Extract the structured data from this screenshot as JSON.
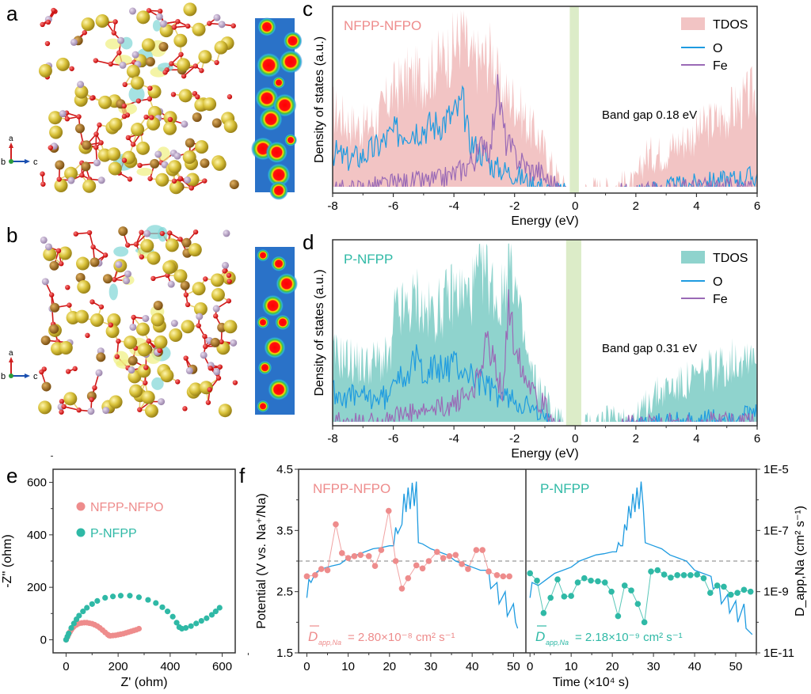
{
  "panels": {
    "a": {
      "letter": "a",
      "axes": {
        "up": "a",
        "origin": "b",
        "right": "c"
      }
    },
    "b": {
      "letter": "b",
      "axes": {
        "up": "a",
        "origin": "b",
        "right": "c"
      }
    }
  },
  "colors": {
    "nfpo": "#ee8c8c",
    "nfpo_fill": "#f2c4c4",
    "pnfpp": "#2fb9a6",
    "pnfpp_fill": "#8fd3cd",
    "o_line": "#1e9be0",
    "fe_line": "#9a6ab6",
    "gap_band": "#dcecc8",
    "ref_dash": "#999999"
  },
  "chart_data": [
    {
      "id": "c",
      "panel_letter": "c",
      "type": "area",
      "sample_label": "NFPP-NFPO",
      "xlabel": "Energy (eV)",
      "ylabel": "Density of states (a.u.)",
      "xlim": [
        -8,
        6
      ],
      "ylim": [
        0,
        1
      ],
      "xticks": [
        -8,
        -6,
        -4,
        -2,
        0,
        2,
        4,
        6
      ],
      "gap_band": [
        -0.18,
        0.12
      ],
      "annotation": "Band gap 0.18 eV",
      "legend": {
        "placement": "top-right",
        "entries": [
          "TDOS",
          "O",
          "Fe"
        ]
      },
      "series": [
        {
          "name": "TDOS",
          "x": [
            -8,
            -7.5,
            -7,
            -6.5,
            -6,
            -5.5,
            -5,
            -4.5,
            -4,
            -3.7,
            -3.5,
            -3,
            -2.7,
            -2.5,
            -2,
            -1.5,
            -1.2,
            -1,
            -0.5,
            -0.2,
            0.2,
            0.6,
            1,
            1.5,
            2,
            2.3,
            3,
            3.5,
            4,
            4.5,
            5,
            5.5,
            6
          ],
          "y": [
            0.45,
            0.38,
            0.35,
            0.4,
            0.55,
            0.62,
            0.62,
            0.7,
            0.78,
            0.88,
            0.7,
            0.72,
            0.75,
            0.55,
            0.5,
            0.35,
            0.3,
            0.22,
            0.06,
            0.0,
            0.0,
            0.03,
            0.02,
            0.05,
            0.05,
            0.2,
            0.22,
            0.28,
            0.32,
            0.38,
            0.42,
            0.48,
            0.55
          ]
        },
        {
          "name": "O",
          "x": [
            -8,
            -7.5,
            -7,
            -6.5,
            -6,
            -5.5,
            -5,
            -4.5,
            -4,
            -3.7,
            -3.5,
            -3,
            -2.7,
            -2.5,
            -2,
            -1.5,
            -1.2,
            -1,
            -0.5,
            -0.2,
            0.2,
            1,
            2,
            3,
            4,
            5,
            6
          ],
          "y": [
            0.22,
            0.18,
            0.2,
            0.25,
            0.32,
            0.34,
            0.35,
            0.37,
            0.42,
            0.48,
            0.28,
            0.2,
            0.14,
            0.13,
            0.1,
            0.06,
            0.05,
            0.02,
            0.01,
            0.0,
            0.0,
            0.0,
            0.01,
            0.03,
            0.05,
            0.07,
            0.09
          ]
        },
        {
          "name": "Fe",
          "x": [
            -8,
            -7.5,
            -7,
            -6.5,
            -6,
            -5.5,
            -5,
            -4.5,
            -4,
            -3.7,
            -3.5,
            -3.2,
            -3,
            -2.8,
            -2.6,
            -2.5,
            -2.3,
            -2,
            -1.7,
            -1.5,
            -1.2,
            -1,
            -0.5,
            -0.2,
            0.2,
            1,
            2,
            3,
            4,
            5,
            6
          ],
          "y": [
            0.02,
            0.02,
            0.03,
            0.04,
            0.05,
            0.06,
            0.06,
            0.07,
            0.1,
            0.13,
            0.16,
            0.2,
            0.3,
            0.22,
            0.55,
            0.5,
            0.28,
            0.2,
            0.16,
            0.12,
            0.12,
            0.08,
            0.02,
            0.0,
            0.0,
            0.0,
            0.01,
            0.02,
            0.03,
            0.03,
            0.02
          ]
        }
      ]
    },
    {
      "id": "d",
      "panel_letter": "d",
      "type": "area",
      "sample_label": "P-NFPP",
      "xlabel": "Energy (eV)",
      "ylabel": "Density of states (a.u.)",
      "xlim": [
        -8,
        6
      ],
      "ylim": [
        0,
        1
      ],
      "xticks": [
        -8,
        -6,
        -4,
        -2,
        0,
        2,
        4,
        6
      ],
      "gap_band": [
        -0.3,
        0.2
      ],
      "annotation": "Band gap 0.31 eV",
      "legend": {
        "placement": "top-right",
        "entries": [
          "TDOS",
          "O",
          "Fe"
        ]
      },
      "series": [
        {
          "name": "TDOS",
          "x": [
            -8,
            -7.5,
            -7,
            -6.5,
            -6.05,
            -6,
            -5.5,
            -5.2,
            -5,
            -4.5,
            -4,
            -3.5,
            -3,
            -2.7,
            -2.5,
            -2.2,
            -2.1,
            -1.8,
            -1.5,
            -1.2,
            -1,
            -0.7,
            -0.5,
            -0.35,
            0.2,
            0.9,
            1.5,
            2,
            2.5,
            3,
            3.5,
            4,
            4.5,
            5,
            5.5,
            6
          ],
          "y": [
            0.38,
            0.36,
            0.32,
            0.35,
            0.35,
            0.6,
            0.62,
            0.7,
            0.6,
            0.62,
            0.72,
            0.7,
            0.85,
            0.74,
            0.62,
            0.9,
            0.9,
            0.55,
            0.3,
            0.2,
            0.15,
            0.05,
            0.05,
            0.0,
            0.0,
            0.03,
            0.05,
            0.04,
            0.15,
            0.2,
            0.22,
            0.26,
            0.3,
            0.33,
            0.38,
            0.42
          ]
        },
        {
          "name": "O",
          "x": [
            -8,
            -7.5,
            -7,
            -6.5,
            -6.05,
            -6,
            -5.5,
            -5.2,
            -5,
            -4.5,
            -4,
            -3.5,
            -3,
            -2.5,
            -2,
            -1.5,
            -1.3,
            -1,
            -0.7,
            -0.35,
            0.2,
            1,
            2,
            3,
            4,
            5,
            6
          ],
          "y": [
            0.18,
            0.16,
            0.15,
            0.15,
            0.15,
            0.3,
            0.28,
            0.36,
            0.3,
            0.3,
            0.33,
            0.28,
            0.22,
            0.16,
            0.14,
            0.1,
            0.06,
            0.03,
            0.01,
            0.0,
            0.0,
            0.0,
            0.01,
            0.02,
            0.03,
            0.04,
            0.06
          ]
        },
        {
          "name": "Fe",
          "x": [
            -8,
            -7.5,
            -7,
            -6.5,
            -6,
            -5.5,
            -5,
            -4.5,
            -4,
            -3.5,
            -3.2,
            -3,
            -2.8,
            -2.6,
            -2.4,
            -2.2,
            -2.1,
            -2,
            -1.7,
            -1.5,
            -1.2,
            -1,
            -0.7,
            -0.35,
            0.2,
            1,
            2,
            3,
            4,
            5,
            6
          ],
          "y": [
            0.02,
            0.02,
            0.02,
            0.03,
            0.05,
            0.06,
            0.07,
            0.09,
            0.12,
            0.17,
            0.25,
            0.43,
            0.4,
            0.3,
            0.18,
            0.62,
            0.55,
            0.45,
            0.3,
            0.25,
            0.14,
            0.1,
            0.02,
            0.0,
            0.0,
            0.0,
            0.01,
            0.02,
            0.02,
            0.03,
            0.03
          ]
        }
      ]
    },
    {
      "id": "e",
      "panel_letter": "e",
      "type": "scatter",
      "xlabel": "Z' (ohm)",
      "ylabel": "-Z'' (ohm)",
      "xlim": [
        -50,
        650
      ],
      "ylim": [
        -50,
        650
      ],
      "xticks": [
        0,
        200,
        400,
        600
      ],
      "yticks": [
        0,
        200,
        400,
        600
      ],
      "legend": {
        "placement": "top-left",
        "entries": [
          "NFPP-NFPO",
          "P-NFPP"
        ]
      },
      "series": [
        {
          "name": "NFPP-NFPO",
          "x": [
            0,
            5,
            10,
            15,
            20,
            25,
            30,
            40,
            50,
            60,
            70,
            80,
            90,
            100,
            110,
            120,
            130,
            140,
            150,
            160,
            165,
            170,
            180,
            190,
            200,
            210,
            220,
            230,
            240,
            250,
            260,
            270,
            280
          ],
          "y": [
            0,
            10,
            20,
            30,
            38,
            45,
            50,
            57,
            62,
            64,
            65,
            65,
            63,
            61,
            57,
            52,
            45,
            37,
            28,
            20,
            16,
            15,
            16,
            17,
            19,
            21,
            23,
            26,
            29,
            32,
            35,
            38,
            42
          ]
        },
        {
          "name": "P-NFPP",
          "x": [
            0,
            5,
            10,
            20,
            30,
            40,
            50,
            65,
            80,
            100,
            120,
            150,
            180,
            210,
            245,
            280,
            315,
            345,
            370,
            390,
            410,
            425,
            435,
            445,
            460,
            480,
            500,
            520,
            540,
            560,
            575,
            590
          ],
          "y": [
            0,
            12,
            24,
            45,
            62,
            78,
            92,
            108,
            122,
            136,
            148,
            160,
            165,
            168,
            168,
            162,
            152,
            140,
            124,
            108,
            88,
            65,
            48,
            42,
            45,
            52,
            62,
            72,
            82,
            95,
            108,
            122
          ]
        }
      ]
    },
    {
      "id": "f",
      "panel_letter": "f",
      "type": "line",
      "xlabel": "Time (×10⁴ s)",
      "ylabel_left": "Potential (V vs. Na⁺/Na)",
      "ylabel_right": "D_app,Na (cm² s⁻¹)",
      "ylim_left": [
        1.5,
        4.5
      ],
      "yticks_left": [
        1.5,
        2.5,
        3.5,
        4.5
      ],
      "ylim_right_log": [
        -11,
        -5
      ],
      "yticks_right": [
        "1E-11",
        "1E-9",
        "1E-7",
        "1E-5"
      ],
      "reference_line_potential": 3.0,
      "subplots": [
        {
          "sample_label": "NFPP-NFPO",
          "xlim": [
            -2,
            53
          ],
          "xticks": [
            0,
            10,
            20,
            30,
            40,
            50
          ],
          "annotation": {
            "symbol": "D",
            "subscript": "app,Na",
            "text": "= 2.80×10⁻⁸ cm² s⁻¹"
          },
          "potential": {
            "x": [
              0,
              0.5,
              1,
              2,
              3,
              4,
              5,
              6,
              8,
              10,
              12,
              14,
              16,
              18,
              20,
              21,
              21.5,
              22,
              23,
              23.5,
              24,
              24.5,
              25,
              25.5,
              26,
              26.5,
              27,
              28,
              30,
              32,
              34,
              36,
              38,
              40,
              42,
              44,
              44.5,
              46,
              46.5,
              48,
              48.5,
              50,
              50.5,
              51
            ],
            "y": [
              2.4,
              2.7,
              2.65,
              2.8,
              2.85,
              2.88,
              2.9,
              2.92,
              2.95,
              3.05,
              3.1,
              3.15,
              3.2,
              3.22,
              3.25,
              3.25,
              3.55,
              3.45,
              3.6,
              4.1,
              3.8,
              4.2,
              3.85,
              4.28,
              3.9,
              4.3,
              3.3,
              3.28,
              3.2,
              3.15,
              3.1,
              3.0,
              2.95,
              2.9,
              2.85,
              2.85,
              2.55,
              2.65,
              2.3,
              2.5,
              2.1,
              2.3,
              2.0,
              1.9
            ]
          },
          "diffusivity_potential_axis": {
            "x": [
              0,
              2,
              3.5,
              5,
              7,
              8.5,
              10,
              11.5,
              13,
              15,
              16.5,
              18,
              19.8,
              21.5,
              23,
              24.5,
              26.5,
              28,
              29.5,
              31.5,
              33,
              34.5,
              36,
              37.5,
              39,
              41,
              42.5,
              44,
              46,
              47.5,
              49
            ],
            "y": [
              2.75,
              2.77,
              2.87,
              2.85,
              3.6,
              3.13,
              3.05,
              3.08,
              3.1,
              3.08,
              2.92,
              3.18,
              3.82,
              3.0,
              2.55,
              2.72,
              2.93,
              2.88,
              3.0,
              3.15,
              3.05,
              3.08,
              3.1,
              2.95,
              2.87,
              3.18,
              3.18,
              2.83,
              2.77,
              2.75,
              2.75
            ]
          }
        },
        {
          "sample_label": "P-NFPP",
          "xlim": [
            -1,
            55
          ],
          "xticks": [
            0,
            10,
            20,
            30,
            40,
            50
          ],
          "annotation": {
            "symbol": "D",
            "subscript": "app,Na",
            "text": "= 2.18×10⁻⁹ cm² s⁻¹"
          },
          "potential": {
            "x": [
              0,
              0.5,
              2,
              4,
              6,
              8,
              10,
              12,
              14,
              16,
              18,
              20,
              21,
              21.5,
              22,
              22.5,
              23,
              23.5,
              24,
              24.5,
              25,
              25.5,
              26,
              26.5,
              27,
              27.5,
              28,
              30,
              32,
              34,
              36,
              38,
              40,
              42,
              44,
              44.5,
              46,
              46.5,
              48,
              48.5,
              50,
              50.5,
              52,
              52.5,
              54
            ],
            "y": [
              2.4,
              2.65,
              2.6,
              2.7,
              2.8,
              2.85,
              2.9,
              3.0,
              3.05,
              3.1,
              3.12,
              3.15,
              3.15,
              3.3,
              3.25,
              3.25,
              3.6,
              3.5,
              3.9,
              3.7,
              4.1,
              3.8,
              4.2,
              3.85,
              4.3,
              3.9,
              3.3,
              3.25,
              3.2,
              3.1,
              3.05,
              3.0,
              2.85,
              2.8,
              2.75,
              2.55,
              2.6,
              2.3,
              2.45,
              2.15,
              2.35,
              2.0,
              2.3,
              1.9,
              1.8
            ]
          },
          "diffusivity_potential_axis": {
            "x": [
              0,
              1.7,
              3.3,
              5,
              6.7,
              8.3,
              10,
              11.6,
              13.2,
              14.8,
              16.5,
              18.2,
              19.8,
              21.4,
              23,
              24.6,
              26.2,
              27.8,
              29.4,
              31,
              32.6,
              34.2,
              35.8,
              37.4,
              39,
              40.6,
              42.2,
              43.8,
              45.5,
              47.1,
              48.8,
              50.4,
              52,
              53.6
            ],
            "y": [
              2.8,
              2.68,
              2.15,
              2.4,
              2.7,
              2.42,
              2.43,
              2.65,
              2.72,
              2.68,
              2.67,
              2.65,
              2.5,
              2.1,
              2.6,
              2.52,
              2.3,
              2.0,
              2.83,
              2.85,
              2.78,
              2.73,
              2.77,
              2.77,
              2.77,
              2.78,
              2.72,
              2.48,
              2.6,
              2.58,
              2.45,
              2.48,
              2.53,
              2.5
            ]
          }
        }
      ]
    }
  ]
}
